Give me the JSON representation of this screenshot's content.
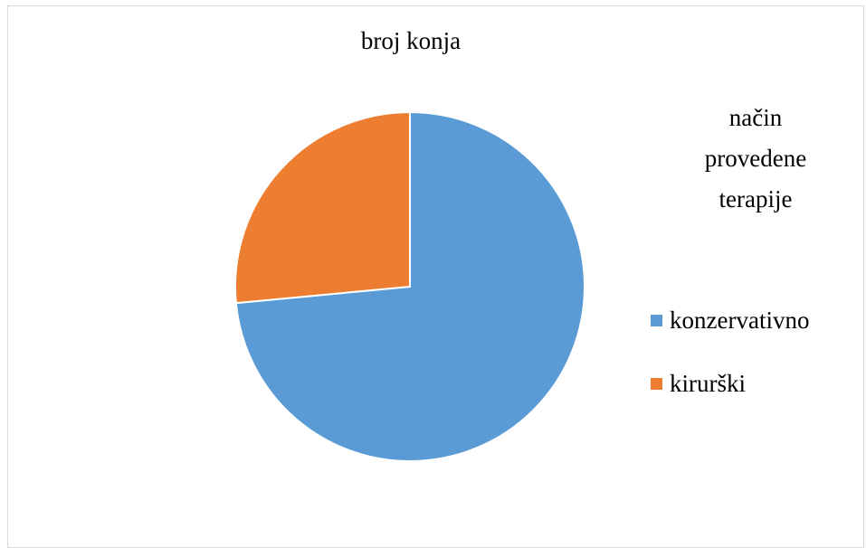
{
  "chart_data": {
    "type": "pie",
    "title": "broj konja",
    "legend_title": [
      "način",
      "provedene",
      "terapije"
    ],
    "legend_position": "right",
    "categories": [
      "konzervativno",
      "kirurški"
    ],
    "values": [
      73.5,
      26.5
    ],
    "colors": [
      "#5B9BD5",
      "#ED7D31"
    ]
  }
}
